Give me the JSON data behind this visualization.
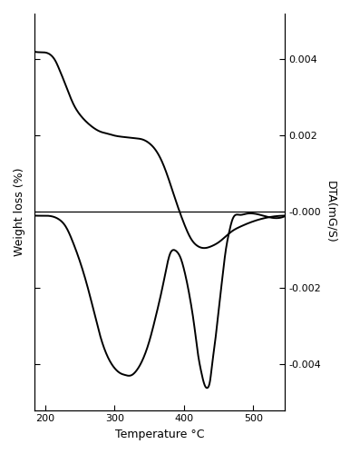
{
  "xlim": [
    185,
    545
  ],
  "left_ylabel": "Weight loss (%)",
  "right_ylabel": "DTA(mG/S)",
  "xlabel": "Temperature °C",
  "right_yticks": [
    0.004,
    0.002,
    0.0,
    -0.002,
    -0.004
  ],
  "right_yticklabels": [
    "0.004",
    "0.002",
    "-0.000",
    "-0.002",
    "-0.004"
  ],
  "right_ylim": [
    -0.0052,
    0.0052
  ],
  "background_color": "#ffffff",
  "line_color": "#000000",
  "linewidth": 1.4,
  "tga_x": [
    185,
    200,
    205,
    210,
    215,
    220,
    230,
    240,
    250,
    260,
    270,
    280,
    290,
    300,
    310,
    320,
    330,
    340,
    350,
    360,
    370,
    380,
    390,
    400,
    410,
    420,
    430,
    440,
    450,
    460,
    470,
    480,
    500,
    520,
    545
  ],
  "tga_y": [
    0.0042,
    0.00418,
    0.00415,
    0.00408,
    0.00395,
    0.00375,
    0.0033,
    0.00285,
    0.00255,
    0.00235,
    0.0022,
    0.0021,
    0.00205,
    0.002,
    0.00197,
    0.00195,
    0.00193,
    0.0019,
    0.0018,
    0.0016,
    0.00125,
    0.00075,
    0.0002,
    -0.0003,
    -0.0007,
    -0.0009,
    -0.00095,
    -0.0009,
    -0.0008,
    -0.00065,
    -0.0005,
    -0.0004,
    -0.00025,
    -0.00015,
    -0.0001
  ],
  "dta_x": [
    185,
    200,
    210,
    220,
    230,
    240,
    250,
    260,
    270,
    280,
    290,
    300,
    310,
    315,
    320,
    325,
    330,
    340,
    350,
    360,
    370,
    375,
    380,
    385,
    390,
    395,
    400,
    410,
    415,
    420,
    425,
    430,
    433,
    435,
    438,
    440,
    445,
    450,
    455,
    460,
    465,
    470,
    480,
    490,
    510,
    545
  ],
  "dta_y": [
    -0.0001,
    -0.0001,
    -0.00012,
    -0.0002,
    -0.0004,
    -0.0008,
    -0.0013,
    -0.0019,
    -0.0026,
    -0.0033,
    -0.0038,
    -0.0041,
    -0.00425,
    -0.00428,
    -0.0043,
    -0.00428,
    -0.0042,
    -0.0039,
    -0.0034,
    -0.0027,
    -0.0019,
    -0.00145,
    -0.0011,
    -0.001,
    -0.00105,
    -0.0012,
    -0.0015,
    -0.0024,
    -0.003,
    -0.0037,
    -0.0042,
    -0.00455,
    -0.00462,
    -0.0046,
    -0.0044,
    -0.0041,
    -0.0034,
    -0.0026,
    -0.0018,
    -0.00105,
    -0.00055,
    -0.0002,
    -8e-05,
    -5e-05,
    -8e-05,
    -0.00012
  ]
}
